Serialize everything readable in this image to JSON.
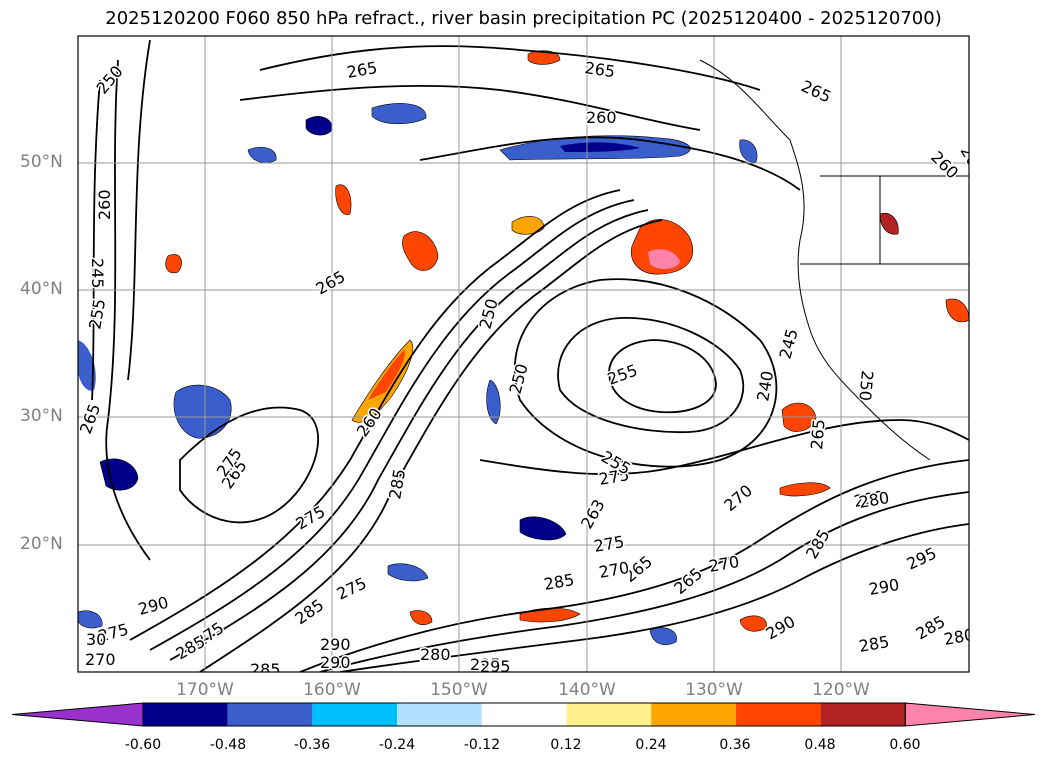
{
  "title": "2025120200 F060 850 hPa refract., river basin precipitation PC (2025120400 - 2025120700)",
  "map": {
    "lat_labels": [
      "50°N",
      "40°N",
      "30°N",
      "20°N"
    ],
    "lon_labels": [
      "170°W",
      "160°W",
      "150°W",
      "140°W",
      "130°W",
      "120°W"
    ],
    "contour_labels": [
      {
        "text": "250",
        "name": "contour-label-250"
      },
      {
        "text": "265",
        "name": "contour-label-265"
      },
      {
        "text": "265",
        "name": "contour-label-265"
      },
      {
        "text": "260",
        "name": "contour-label-260"
      },
      {
        "text": "265",
        "name": "contour-label-265"
      },
      {
        "text": "260",
        "name": "contour-label-260"
      },
      {
        "text": "265",
        "name": "contour-label-265"
      },
      {
        "text": "260",
        "name": "contour-label-260"
      },
      {
        "text": "245",
        "name": "contour-label-245"
      },
      {
        "text": "265",
        "name": "contour-label-265"
      },
      {
        "text": "255",
        "name": "contour-label-255"
      },
      {
        "text": "265",
        "name": "contour-label-265"
      },
      {
        "text": "250",
        "name": "contour-label-250"
      },
      {
        "text": "250",
        "name": "contour-label-250"
      },
      {
        "text": "255",
        "name": "contour-label-255"
      },
      {
        "text": "240",
        "name": "contour-label-240"
      },
      {
        "text": "245",
        "name": "contour-label-245"
      },
      {
        "text": "250",
        "name": "contour-label-250"
      },
      {
        "text": "265",
        "name": "contour-label-265"
      },
      {
        "text": "265",
        "name": "contour-label-265"
      },
      {
        "text": "280",
        "name": "contour-label-280"
      },
      {
        "text": "275",
        "name": "contour-label-275"
      },
      {
        "text": "270",
        "name": "contour-label-270"
      },
      {
        "text": "260",
        "name": "contour-label-260"
      },
      {
        "text": "255",
        "name": "contour-label-255"
      },
      {
        "text": "275",
        "name": "contour-label-275"
      },
      {
        "text": "285",
        "name": "contour-label-285"
      },
      {
        "text": "275",
        "name": "contour-label-275"
      },
      {
        "text": "265",
        "name": "contour-label-265"
      },
      {
        "text": "285",
        "name": "contour-label-285"
      },
      {
        "text": "263",
        "name": "contour-label-263"
      },
      {
        "text": "275",
        "name": "contour-label-275"
      },
      {
        "text": "270",
        "name": "contour-label-270"
      },
      {
        "text": "270",
        "name": "contour-label-270"
      },
      {
        "text": "285",
        "name": "contour-label-285"
      },
      {
        "text": "280",
        "name": "contour-label-280"
      },
      {
        "text": "295",
        "name": "contour-label-295"
      },
      {
        "text": "290",
        "name": "contour-label-290"
      },
      {
        "text": "285",
        "name": "contour-label-285"
      },
      {
        "text": "275",
        "name": "contour-label-275"
      },
      {
        "text": "290",
        "name": "contour-label-290"
      },
      {
        "text": "285",
        "name": "contour-label-285"
      },
      {
        "text": "265",
        "name": "contour-label-265"
      },
      {
        "text": "275",
        "name": "contour-label-275"
      },
      {
        "text": "295",
        "name": "contour-label-295"
      },
      {
        "text": "290",
        "name": "contour-label-290"
      },
      {
        "text": "285",
        "name": "contour-label-285"
      },
      {
        "text": "290",
        "name": "contour-label-290"
      },
      {
        "text": "285",
        "name": "contour-label-285"
      },
      {
        "text": "280",
        "name": "contour-label-280"
      },
      {
        "text": "270",
        "name": "contour-label-270"
      },
      {
        "text": "275",
        "name": "contour-label-275"
      },
      {
        "text": "285",
        "name": "contour-label-285"
      },
      {
        "text": "290",
        "name": "contour-label-290"
      },
      {
        "text": "280",
        "name": "contour-label-280"
      },
      {
        "text": "295",
        "name": "contour-label-295"
      },
      {
        "text": "30",
        "name": "contour-label-30"
      }
    ]
  },
  "colorbar": {
    "levels": [
      "-0.60",
      "-0.48",
      "-0.36",
      "-0.24",
      "-0.12",
      "0.12",
      "0.24",
      "0.36",
      "0.48",
      "0.60"
    ],
    "colors": [
      "#9932cc",
      "#00008b",
      "#3a5fcd",
      "#00bfff",
      "#b0e2ff",
      "#ffffff",
      "#fff08c",
      "#ffa500",
      "#ff4500",
      "#b22222",
      "#ff82ab"
    ]
  }
}
